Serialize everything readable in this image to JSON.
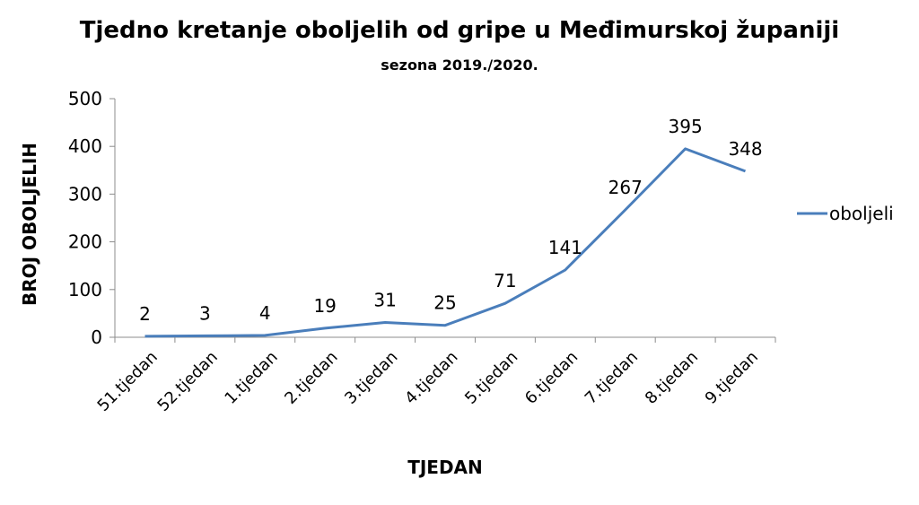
{
  "chart_data": {
    "type": "line",
    "title": "Tjedno kretanje oboljelih od gripe u Međimurskoj županiji",
    "subtitle": "sezona 2019./2020.",
    "xlabel": "TJEDAN",
    "ylabel": "BROJ OBOLJELIH",
    "categories": [
      "51.tjedan",
      "52.tjedan",
      "1.tjedan",
      "2.tjedan",
      "3.tjedan",
      "4.tjedan",
      "5.tjedan",
      "6.tjedan",
      "7.tjedan",
      "8.tjedan",
      "9.tjedan"
    ],
    "series": [
      {
        "name": "oboljeli",
        "values": [
          2,
          3,
          4,
          19,
          31,
          25,
          71,
          141,
          267,
          395,
          348
        ],
        "color": "#4a7ebb"
      }
    ],
    "ylim": [
      0,
      500
    ],
    "yticks": [
      0,
      100,
      200,
      300,
      400,
      500
    ],
    "grid": false,
    "legend": "right"
  }
}
